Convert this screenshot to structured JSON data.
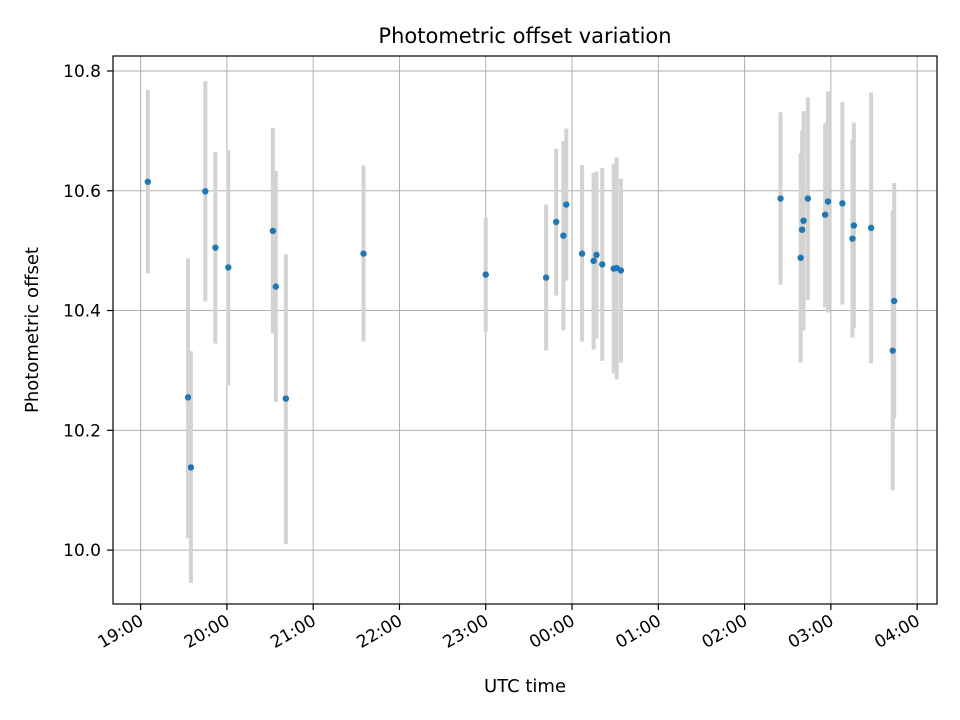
{
  "chart_data": {
    "type": "scatter",
    "title": "Photometric offset variation",
    "xlabel": "UTC time",
    "ylabel": "Photometric offset",
    "xlim_hours": [
      18.68,
      28.23
    ],
    "ylim": [
      9.91,
      10.825
    ],
    "x_ticks": [
      {
        "h": 19,
        "label": "19:00"
      },
      {
        "h": 20,
        "label": "20:00"
      },
      {
        "h": 21,
        "label": "21:00"
      },
      {
        "h": 22,
        "label": "22:00"
      },
      {
        "h": 23,
        "label": "23:00"
      },
      {
        "h": 24,
        "label": "00:00"
      },
      {
        "h": 25,
        "label": "01:00"
      },
      {
        "h": 26,
        "label": "02:00"
      },
      {
        "h": 27,
        "label": "03:00"
      },
      {
        "h": 28,
        "label": "04:00"
      }
    ],
    "y_ticks": [
      {
        "v": 10.0,
        "label": "10.0"
      },
      {
        "v": 10.2,
        "label": "10.2"
      },
      {
        "v": 10.4,
        "label": "10.4"
      },
      {
        "v": 10.6,
        "label": "10.6"
      },
      {
        "v": 10.8,
        "label": "10.8"
      }
    ],
    "grid": true,
    "colors": {
      "point": "#1f77b4",
      "errorbar": "#d3d3d3",
      "grid": "#b0b0b0"
    },
    "points": [
      {
        "t": "19:05",
        "y": 10.615,
        "lo": 10.462,
        "hi": 10.768
      },
      {
        "t": "19:33",
        "y": 10.255,
        "lo": 10.02,
        "hi": 10.487
      },
      {
        "t": "19:35",
        "y": 10.138,
        "lo": 9.945,
        "hi": 10.332
      },
      {
        "t": "19:45",
        "y": 10.599,
        "lo": 10.415,
        "hi": 10.783
      },
      {
        "t": "19:52",
        "y": 10.505,
        "lo": 10.345,
        "hi": 10.665
      },
      {
        "t": "20:01",
        "y": 10.472,
        "lo": 10.275,
        "hi": 10.668
      },
      {
        "t": "20:32",
        "y": 10.533,
        "lo": 10.362,
        "hi": 10.705
      },
      {
        "t": "20:34",
        "y": 10.44,
        "lo": 10.247,
        "hi": 10.633
      },
      {
        "t": "20:41",
        "y": 10.253,
        "lo": 10.01,
        "hi": 10.494
      },
      {
        "t": "21:35",
        "y": 10.495,
        "lo": 10.348,
        "hi": 10.642
      },
      {
        "t": "23:00",
        "y": 10.46,
        "lo": 10.365,
        "hi": 10.555
      },
      {
        "t": "23:42",
        "y": 10.455,
        "lo": 10.333,
        "hi": 10.577
      },
      {
        "t": "23:49",
        "y": 10.548,
        "lo": 10.425,
        "hi": 10.67
      },
      {
        "t": "23:54",
        "y": 10.525,
        "lo": 10.367,
        "hi": 10.683
      },
      {
        "t": "23:56",
        "y": 10.577,
        "lo": 10.45,
        "hi": 10.704
      },
      {
        "t": "00:07",
        "y": 10.495,
        "lo": 10.348,
        "hi": 10.643
      },
      {
        "t": "00:15",
        "y": 10.483,
        "lo": 10.335,
        "hi": 10.63
      },
      {
        "t": "00:17",
        "y": 10.493,
        "lo": 10.353,
        "hi": 10.632
      },
      {
        "t": "00:21",
        "y": 10.477,
        "lo": 10.316,
        "hi": 10.638
      },
      {
        "t": "00:29",
        "y": 10.47,
        "lo": 10.295,
        "hi": 10.645
      },
      {
        "t": "00:31",
        "y": 10.471,
        "lo": 10.285,
        "hi": 10.656
      },
      {
        "t": "00:34",
        "y": 10.467,
        "lo": 10.313,
        "hi": 10.62
      },
      {
        "t": "02:25",
        "y": 10.587,
        "lo": 10.443,
        "hi": 10.731
      },
      {
        "t": "02:39",
        "y": 10.488,
        "lo": 10.313,
        "hi": 10.663
      },
      {
        "t": "02:40",
        "y": 10.535,
        "lo": 10.37,
        "hi": 10.7
      },
      {
        "t": "02:41",
        "y": 10.55,
        "lo": 10.367,
        "hi": 10.733
      },
      {
        "t": "02:44",
        "y": 10.587,
        "lo": 10.418,
        "hi": 10.756
      },
      {
        "t": "02:56",
        "y": 10.56,
        "lo": 10.405,
        "hi": 10.713
      },
      {
        "t": "02:58",
        "y": 10.582,
        "lo": 10.397,
        "hi": 10.766
      },
      {
        "t": "03:08",
        "y": 10.579,
        "lo": 10.41,
        "hi": 10.748
      },
      {
        "t": "03:15",
        "y": 10.52,
        "lo": 10.355,
        "hi": 10.685
      },
      {
        "t": "03:16",
        "y": 10.542,
        "lo": 10.37,
        "hi": 10.714
      },
      {
        "t": "03:28",
        "y": 10.538,
        "lo": 10.312,
        "hi": 10.764
      },
      {
        "t": "03:43",
        "y": 10.333,
        "lo": 10.1,
        "hi": 10.567
      },
      {
        "t": "03:44",
        "y": 10.416,
        "lo": 10.22,
        "hi": 10.613
      }
    ]
  }
}
